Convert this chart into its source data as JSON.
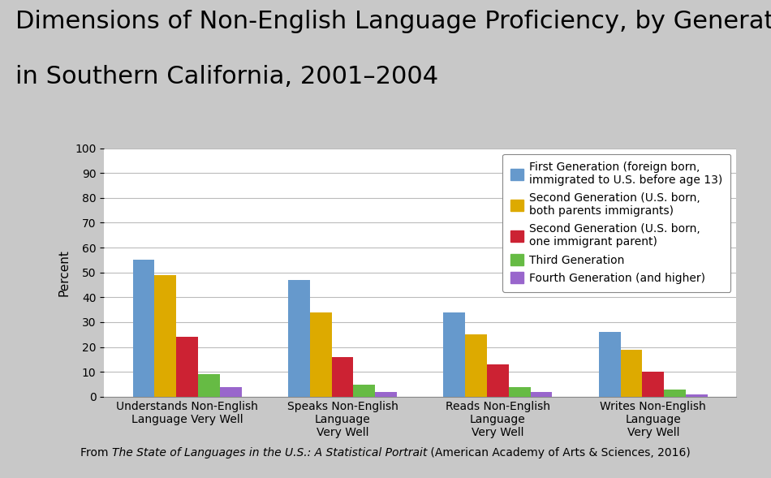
{
  "title_line1": "Dimensions of Non-English Language Proficiency, by Generation,",
  "title_line2": "in Southern California, 2001–2004",
  "categories": [
    "Understands Non-English\nLanguage Very Well",
    "Speaks Non-English\nLanguage\nVery Well",
    "Reads Non-English\nLanguage\nVery Well",
    "Writes Non-English\nLanguage\nVery Well"
  ],
  "series": [
    {
      "label": "First Generation (foreign born,\nimmigrated to U.S. before age 13)",
      "color": "#6699CC",
      "values": [
        55,
        47,
        34,
        26
      ]
    },
    {
      "label": "Second Generation (U.S. born,\nboth parents immigrants)",
      "color": "#DDAA00",
      "values": [
        49,
        34,
        25,
        19
      ]
    },
    {
      "label": "Second Generation (U.S. born,\none immigrant parent)",
      "color": "#CC2233",
      "values": [
        24,
        16,
        13,
        10
      ]
    },
    {
      "label": "Third Generation",
      "color": "#66BB44",
      "values": [
        9,
        5,
        4,
        3
      ]
    },
    {
      "label": "Fourth Generation (and higher)",
      "color": "#9966CC",
      "values": [
        4,
        2,
        2,
        1
      ]
    }
  ],
  "ylabel": "Percent",
  "ylim": [
    0,
    100
  ],
  "yticks": [
    0,
    10,
    20,
    30,
    40,
    50,
    60,
    70,
    80,
    90,
    100
  ],
  "background_color": "#C8C8C8",
  "plot_bg_color": "#FFFFFF",
  "footnote_normal": "From ",
  "footnote_italic": "The State of Languages in the U.S.: A Statistical Portrait",
  "footnote_rest": " (American Academy of Arts & Sciences, 2016)",
  "title_fontsize": 22,
  "axis_label_fontsize": 11,
  "tick_fontsize": 10,
  "legend_fontsize": 10,
  "footnote_fontsize": 10,
  "bar_width": 0.14
}
